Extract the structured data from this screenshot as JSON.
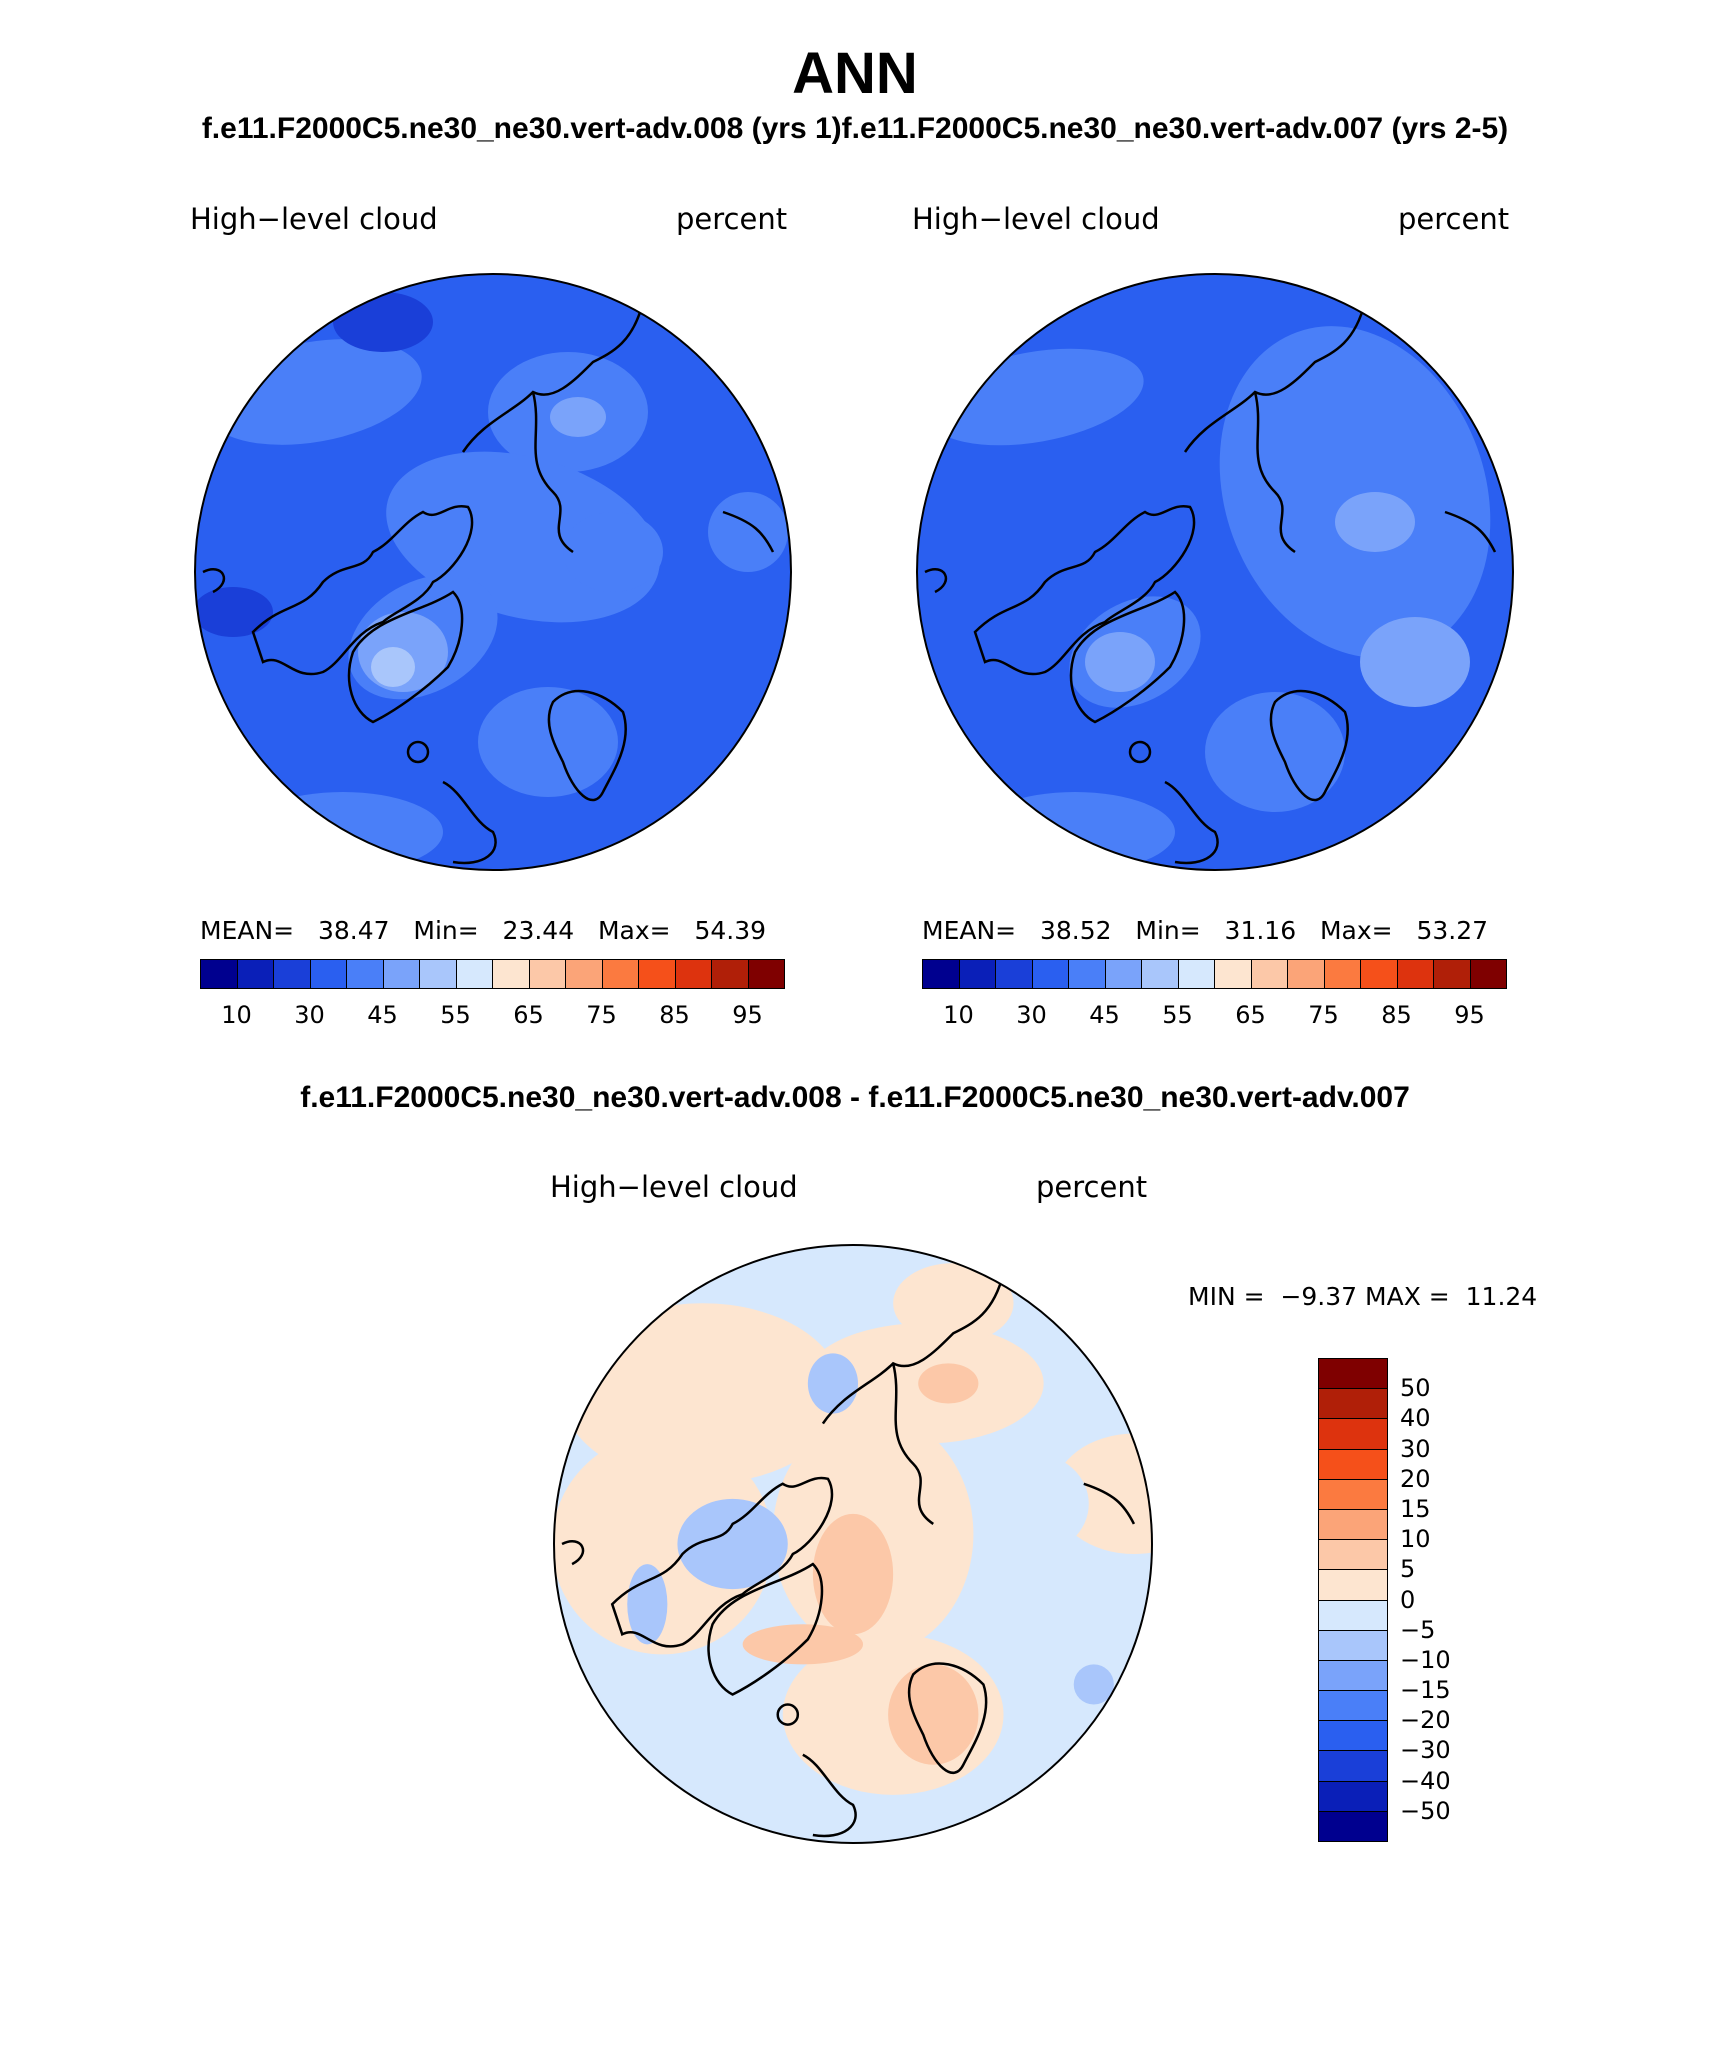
{
  "figure": {
    "title": "ANN",
    "subtitle_top": "f.e11.F2000C5.ne30_ne30.vert-adv.008 (yrs 1)f.e11.F2000C5.ne30_ne30.vert-adv.007 (yrs 2-5)",
    "subtitle_diff": "f.e11.F2000C5.ne30_ne30.vert-adv.008 - f.e11.F2000C5.ne30_ne30.vert-adv.007"
  },
  "panels": [
    {
      "variable": "High−level cloud",
      "units": "percent",
      "stats": {
        "mean_label": "MEAN=",
        "mean": "38.47",
        "min_label": "Min=",
        "min": "23.44",
        "max_label": "Max=",
        "max": "54.39"
      }
    },
    {
      "variable": "High−level cloud",
      "units": "percent",
      "stats": {
        "mean_label": "MEAN=",
        "mean": "38.52",
        "min_label": "Min=",
        "min": "31.16",
        "max_label": "Max=",
        "max": "53.27"
      }
    }
  ],
  "diff_panel": {
    "variable": "High−level cloud",
    "units": "percent",
    "stats": {
      "min_label": "MIN =",
      "min": "−9.37",
      "max_label": "MAX =",
      "max": "11.24"
    }
  },
  "colorbar_abs": {
    "colors": [
      "#00008f",
      "#0a1fb8",
      "#1a3fd8",
      "#2a5ff0",
      "#4a7ff8",
      "#7aa3fa",
      "#a9c6fb",
      "#d6e8fd",
      "#fde5d0",
      "#fcc8a8",
      "#fba478",
      "#fb7a40",
      "#f5501a",
      "#dd330e",
      "#b01f08",
      "#7f0000"
    ],
    "ticks": [
      "10",
      "30",
      "45",
      "55",
      "65",
      "75",
      "85",
      "95"
    ]
  },
  "colorbar_diff": {
    "colors": [
      "#7f0000",
      "#b01f08",
      "#dd330e",
      "#f5501a",
      "#fb7a40",
      "#fba478",
      "#fcc8a8",
      "#fde5d0",
      "#d6e8fd",
      "#a9c6fb",
      "#7aa3fa",
      "#4a7ff8",
      "#2a5ff0",
      "#1a3fd8",
      "#0a1fb8",
      "#00008f"
    ],
    "ticks": [
      "50",
      "40",
      "30",
      "20",
      "15",
      "10",
      "5",
      "0",
      "−5",
      "−10",
      "−15",
      "−20",
      "−30",
      "−40",
      "−50"
    ]
  }
}
